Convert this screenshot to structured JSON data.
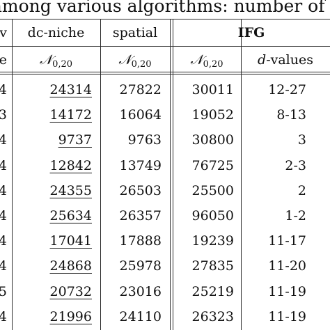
{
  "caption": "among various algorithms: number of p",
  "columns": [
    {
      "id": "c0",
      "header": "v",
      "subheader": "e"
    },
    {
      "id": "c1",
      "header": "dc-niche",
      "subheader": {
        "symbol": "𝒩",
        "sub": "0,20"
      }
    },
    {
      "id": "c2",
      "header": "spatial",
      "subheader": {
        "symbol": "𝒩",
        "sub": "0,20"
      }
    },
    {
      "id": "c3",
      "header": "IFG",
      "subheader": {
        "symbol": "𝒩",
        "sub": "0,20"
      }
    },
    {
      "id": "c4",
      "header": "",
      "subheader": {
        "d": "d",
        "suffix": "-values"
      }
    }
  ],
  "rows": [
    {
      "c0": "4",
      "c1": "24314",
      "c2": "27822",
      "c3": "30011",
      "c4": "12-27"
    },
    {
      "c0": "3",
      "c1": "14172",
      "c2": "16064",
      "c3": "19052",
      "c4": "8-13"
    },
    {
      "c0": "4",
      "c1": "9737",
      "c2": "9763",
      "c3": "30800",
      "c4": "3"
    },
    {
      "c0": "4",
      "c1": "12842",
      "c2": "13749",
      "c3": "76725",
      "c4": "2-3"
    },
    {
      "c0": "4",
      "c1": "24355",
      "c2": "26503",
      "c3": "25500",
      "c4": "2"
    },
    {
      "c0": "4",
      "c1": "25634",
      "c2": "26357",
      "c3": "96050",
      "c4": "1-2"
    },
    {
      "c0": "4",
      "c1": "17041",
      "c2": "17888",
      "c3": "19239",
      "c4": "11-17"
    },
    {
      "c0": "4",
      "c1": "24868",
      "c2": "25978",
      "c3": "27835",
      "c4": "11-20"
    },
    {
      "c0": "5",
      "c1": "20732",
      "c2": "23016",
      "c3": "25219",
      "c4": "11-19"
    },
    {
      "c0": "4",
      "c1": "21996",
      "c2": "24110",
      "c3": "26323",
      "c4": "11-19"
    }
  ],
  "underlined_column": "c1"
}
